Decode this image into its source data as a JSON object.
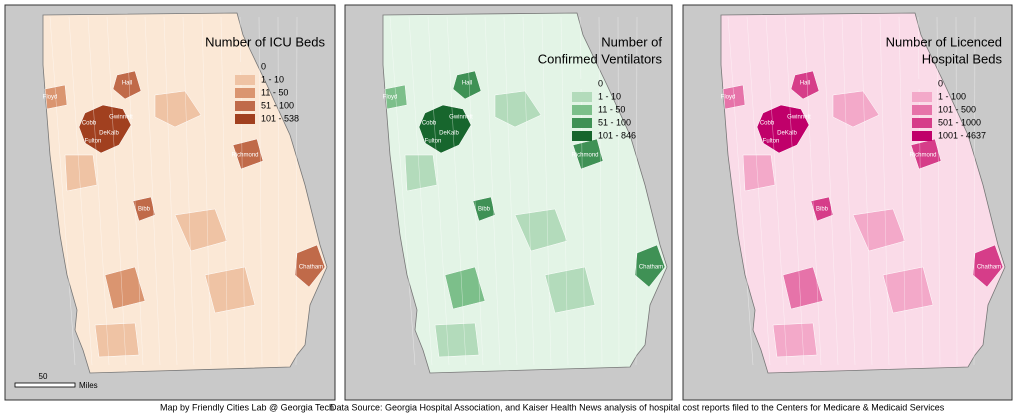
{
  "maps": [
    {
      "title_lines": [
        "Number of ICU Beds"
      ],
      "legend": [
        {
          "label": "0",
          "color": "#fbe8d6"
        },
        {
          "label": "1 - 10",
          "color": "#efc3a4"
        },
        {
          "label": "11 - 50",
          "color": "#da9570"
        },
        {
          "label": "51 - 100",
          "color": "#c06a49"
        },
        {
          "label": "101 - 538",
          "color": "#a1401f"
        }
      ]
    },
    {
      "title_lines": [
        "Number of",
        "Confirmed Ventilators"
      ],
      "legend": [
        {
          "label": "0",
          "color": "#e3f4e6"
        },
        {
          "label": "1 - 10",
          "color": "#b3dbbb"
        },
        {
          "label": "11 - 50",
          "color": "#7cbf8a"
        },
        {
          "label": "51 - 100",
          "color": "#3f9155"
        },
        {
          "label": "101 - 846",
          "color": "#17662d"
        }
      ]
    },
    {
      "title_lines": [
        "Number of Licenced",
        "Hospital Beds"
      ],
      "legend": [
        {
          "label": "0",
          "color": "#fadbe8"
        },
        {
          "label": "1 - 100",
          "color": "#f3a9c9"
        },
        {
          "label": "101 - 500",
          "color": "#e673a9"
        },
        {
          "label": "501 - 1000",
          "color": "#d63d89"
        },
        {
          "label": "1001 - 4637",
          "color": "#c0006a"
        }
      ]
    }
  ],
  "county_labels": [
    "Floyd",
    "Cobb",
    "Fulton",
    "DeKalb",
    "Gwinnett",
    "Hall",
    "Bibb",
    "Richmond",
    "Chatham"
  ],
  "scale_bar": {
    "value": "50",
    "unit": "Miles"
  },
  "credits": {
    "author": "Map by Friendly Cities Lab @ Georgia Tech",
    "source": "Data Source: Georgia Hospital Association, and Kaiser Health News analysis of hospital cost reports filed to the Centers for Medicare & Medicaid Services"
  }
}
